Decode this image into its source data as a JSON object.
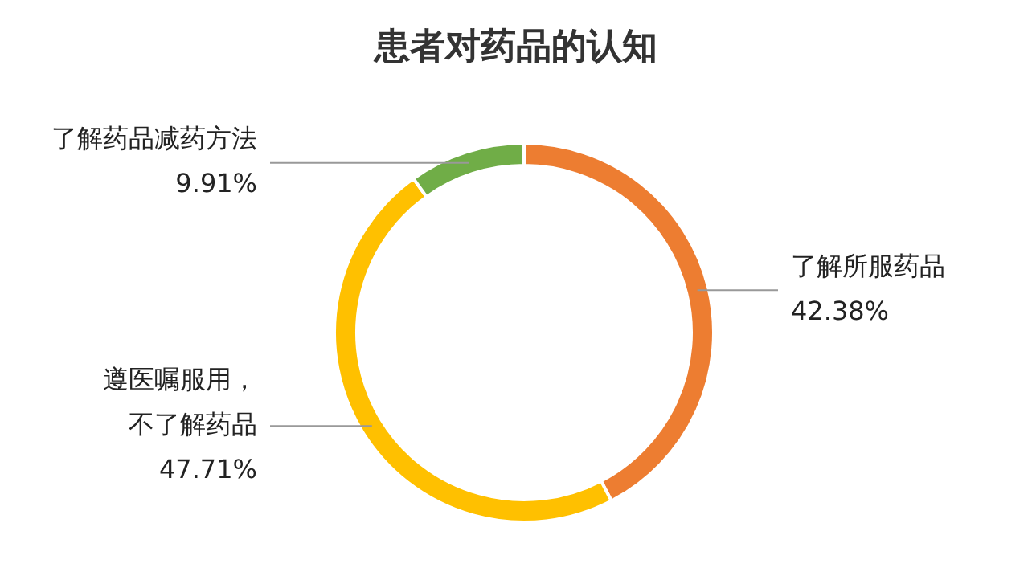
{
  "chart_data": {
    "type": "donut",
    "title": "患者对药品的认知",
    "categories": [
      "了解所服药品",
      "遵医嘱服用，不了解药品",
      "了解药品减药方法"
    ],
    "values": [
      42.38,
      47.71,
      9.91
    ],
    "value_labels": [
      "42.38%",
      "47.71%",
      "9.91%"
    ],
    "colors": [
      "#ed7d31",
      "#ffc000",
      "#70ad47"
    ]
  }
}
